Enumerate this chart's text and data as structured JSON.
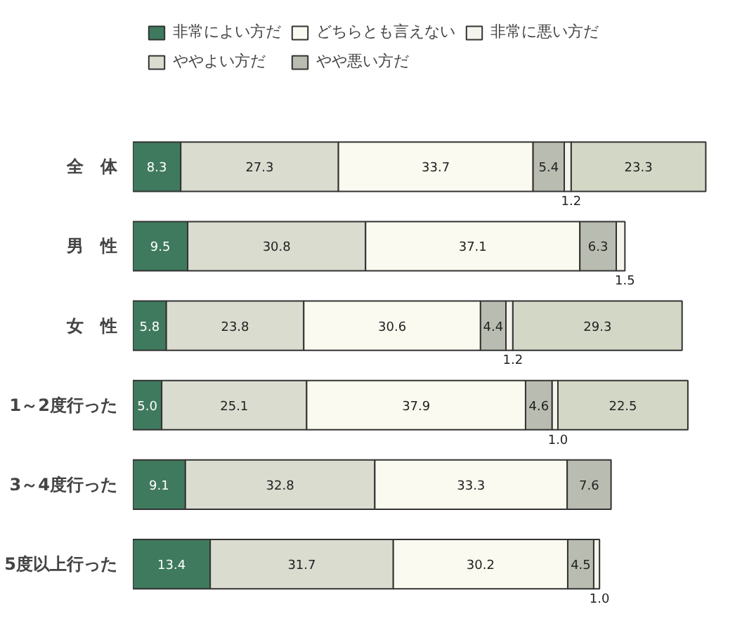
{
  "chart_data": {
    "type": "bar",
    "orientation": "horizontal",
    "stacked": true,
    "legend": "top",
    "grid": false,
    "tick_labels": "y",
    "xlim": [
      0,
      100
    ],
    "categories": [
      "全　体",
      "男　性",
      "女　性",
      "1～2度行った",
      "3～4度行った",
      "5度以上行った"
    ],
    "series": [
      {
        "name": "非常によい方だ",
        "color": "#3f7a5e",
        "values": [
          8.3,
          9.5,
          5.8,
          5.0,
          9.1,
          13.4
        ],
        "value_labels": [
          "8.3",
          "9.5",
          "5.8",
          "5.0",
          "9.1",
          "13.4"
        ]
      },
      {
        "name": "ややよい方だ",
        "color": "#d9dccf",
        "values": [
          27.3,
          30.8,
          23.8,
          25.1,
          32.8,
          31.7
        ],
        "value_labels": [
          "27.3",
          "30.8",
          "23.8",
          "25.1",
          "32.8",
          "31.7"
        ]
      },
      {
        "name": "どちらとも言えない",
        "color": "#fbfaf0",
        "values": [
          33.7,
          37.1,
          30.6,
          37.9,
          33.3,
          30.2
        ],
        "value_labels": [
          "33.7",
          "37.1",
          "30.6",
          "37.9",
          "33.3",
          "30.2"
        ]
      },
      {
        "name": "やや悪い方だ",
        "color": "#b9bcb0",
        "values": [
          5.4,
          6.3,
          4.4,
          4.6,
          7.6,
          4.5
        ],
        "value_labels": [
          "5.4",
          "6.3",
          "4.4",
          "4.6",
          "7.6",
          "4.5"
        ]
      },
      {
        "name": "非常に悪い方だ",
        "color": "#f4f4ec",
        "values": [
          1.2,
          1.5,
          1.2,
          1.0,
          null,
          1.0
        ],
        "value_labels": [
          "1.2",
          "1.5",
          "1.2",
          "1.0",
          null,
          "1.0"
        ]
      },
      {
        "color": "#d3d8c6",
        "values": [
          23.3,
          null,
          29.3,
          22.5,
          null,
          null
        ],
        "value_labels": [
          "23.3",
          null,
          "29.3",
          "22.5",
          null,
          null
        ]
      }
    ]
  }
}
